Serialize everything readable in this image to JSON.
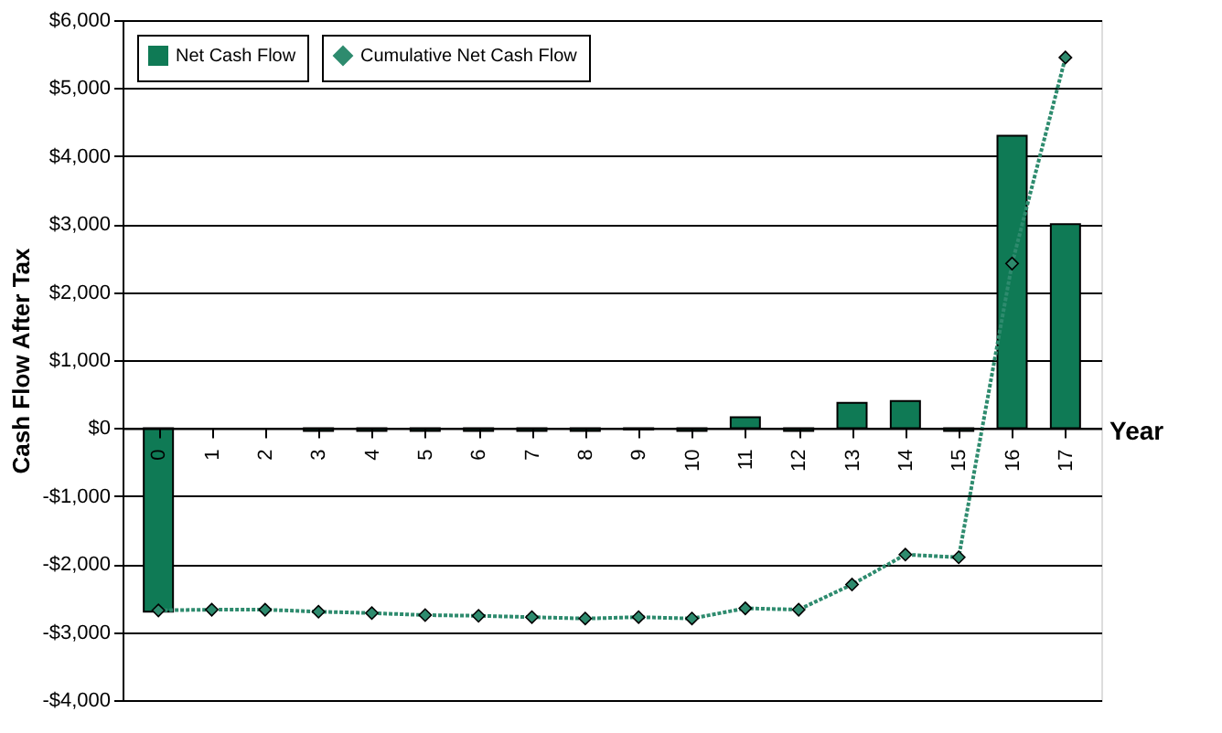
{
  "chart_data": {
    "type": "bar",
    "xlabel": "Year",
    "ylabel": "Cash Flow After Tax",
    "categories": [
      "0",
      "1",
      "2",
      "3",
      "4",
      "5",
      "6",
      "7",
      "8",
      "9",
      "10",
      "11",
      "12",
      "13",
      "14",
      "15",
      "16",
      "17"
    ],
    "series": [
      {
        "name": "Net Cash Flow",
        "color": "#0f7a55",
        "values": [
          -2700,
          0,
          0,
          -40,
          -40,
          -40,
          -40,
          -40,
          -40,
          -20,
          -40,
          160,
          -40,
          370,
          400,
          -40,
          4300,
          3000
        ]
      },
      {
        "name": "Cumulative Net Cash Flow",
        "type": "line",
        "color": "#2e8b6e",
        "marker": "diamond",
        "line_style": "dotted",
        "values": [
          -2680,
          -2670,
          -2670,
          -2700,
          -2720,
          -2750,
          -2760,
          -2780,
          -2800,
          -2780,
          -2800,
          -2650,
          -2670,
          -2300,
          -1860,
          -1900,
          2420,
          5450
        ]
      }
    ],
    "ylim": [
      -4000,
      6000
    ],
    "yticks": [
      {
        "value": -4000,
        "label": "-$4,000"
      },
      {
        "value": -3000,
        "label": "-$3,000"
      },
      {
        "value": -2000,
        "label": "-$2,000"
      },
      {
        "value": -1000,
        "label": "-$1,000"
      },
      {
        "value": 0,
        "label": "$0"
      },
      {
        "value": 1000,
        "label": "$1,000"
      },
      {
        "value": 2000,
        "label": "$2,000"
      },
      {
        "value": 3000,
        "label": "$3,000"
      },
      {
        "value": 4000,
        "label": "$4,000"
      },
      {
        "value": 5000,
        "label": "$5,000"
      },
      {
        "value": 6000,
        "label": "$6,000"
      }
    ],
    "grid": "y",
    "legend": "top left"
  }
}
